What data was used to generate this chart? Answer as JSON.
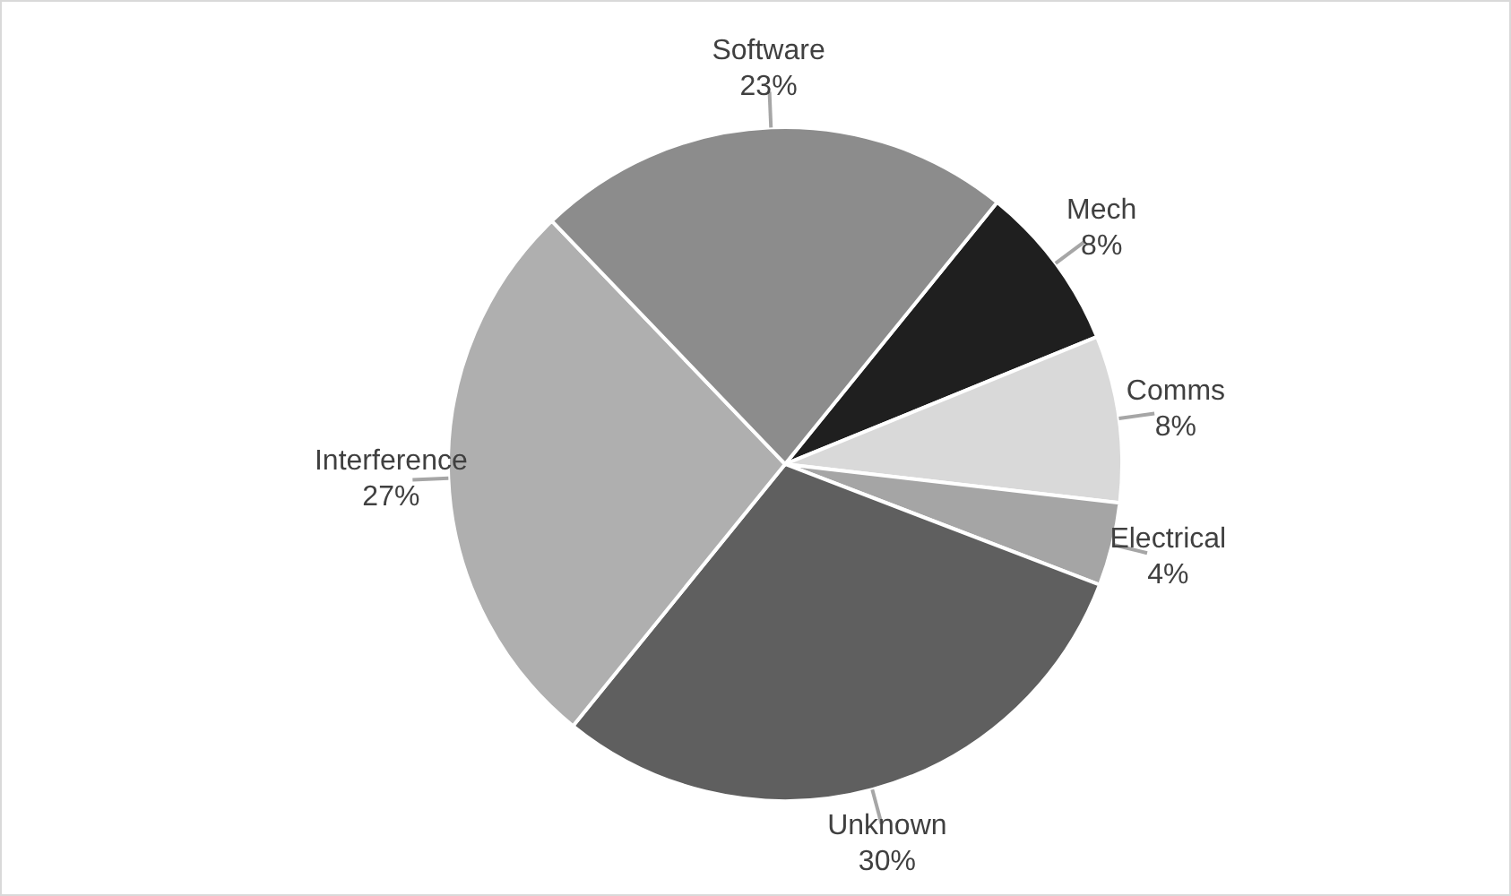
{
  "chart_data": {
    "type": "pie",
    "categories": [
      "Mech",
      "Comms",
      "Electrical",
      "Unknown",
      "Interference",
      "Software"
    ],
    "values": [
      8,
      8,
      4,
      30,
      27,
      23
    ],
    "colors": [
      "#1f1f1f",
      "#d9d9d9",
      "#a5a5a5",
      "#5f5f5f",
      "#afafaf",
      "#8c8c8c"
    ],
    "value_labels": [
      "8%",
      "8%",
      "4%",
      "30%",
      "27%",
      "23%"
    ],
    "legend": false
  }
}
